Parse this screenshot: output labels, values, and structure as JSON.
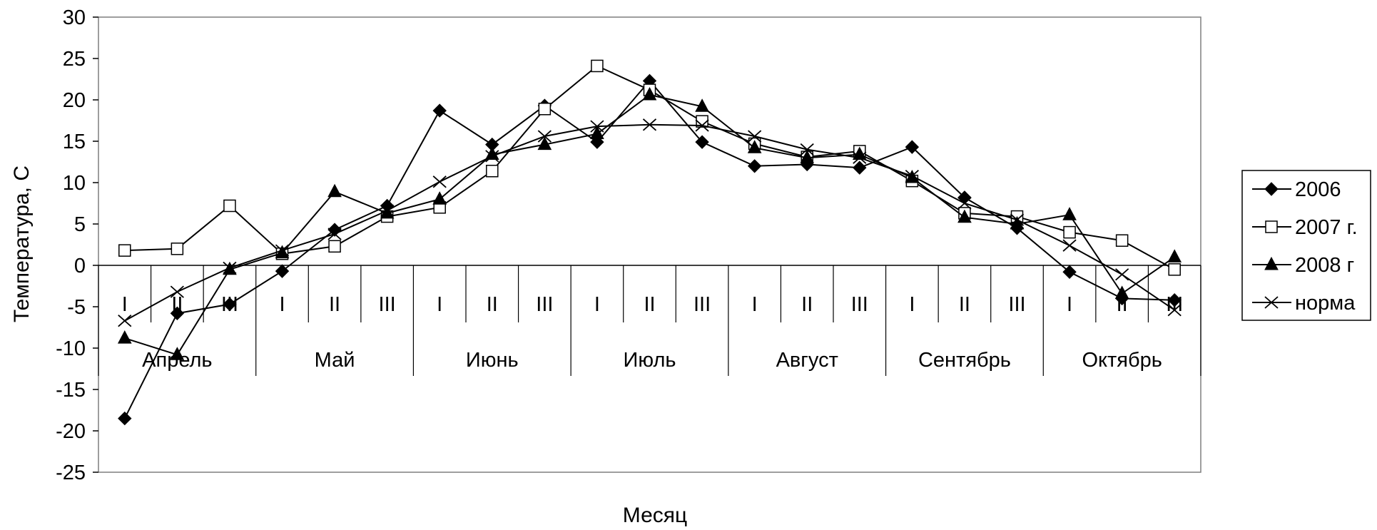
{
  "chart_data": {
    "type": "line",
    "title": "",
    "xlabel": "Месяц",
    "ylabel": "Температура, С",
    "ylim": [
      -25,
      30
    ],
    "yticks": [
      30,
      25,
      20,
      15,
      10,
      5,
      0,
      -5,
      -10,
      -15,
      -20,
      -25
    ],
    "grid": false,
    "legend_position": "right",
    "periods": [
      "I",
      "II",
      "III",
      "I",
      "II",
      "III",
      "I",
      "II",
      "III",
      "I",
      "II",
      "III",
      "I",
      "II",
      "III",
      "I",
      "II",
      "III",
      "I",
      "II",
      "III"
    ],
    "months": [
      "Апрель",
      "Май",
      "Июнь",
      "Июль",
      "Август",
      "Сентябрь",
      "Октябрь"
    ],
    "series": [
      {
        "name": "2006",
        "marker": "diamond-filled",
        "color": "#000000",
        "values": [
          -18.5,
          -5.8,
          -4.7,
          -0.7,
          4.3,
          7.2,
          18.7,
          14.6,
          19.3,
          14.9,
          22.3,
          14.9,
          12.0,
          12.2,
          11.8,
          14.3,
          8.2,
          4.5,
          -0.8,
          -4.0,
          -4.2
        ]
      },
      {
        "name": "2007 г.",
        "marker": "square-open",
        "color": "#000000",
        "values": [
          1.8,
          2.0,
          7.2,
          1.4,
          2.3,
          5.9,
          7.0,
          11.4,
          18.9,
          24.1,
          21.2,
          17.4,
          14.7,
          13.1,
          13.8,
          10.2,
          6.3,
          5.9,
          4.0,
          3.0,
          -0.5
        ]
      },
      {
        "name": "2008 г",
        "marker": "triangle-filled",
        "color": "#000000",
        "values": [
          -8.8,
          -10.8,
          -0.5,
          1.5,
          8.9,
          6.3,
          8.0,
          13.4,
          14.6,
          15.9,
          20.6,
          19.2,
          14.2,
          13.0,
          13.4,
          10.6,
          5.8,
          5.0,
          6.1,
          -3.4,
          1.0
        ]
      },
      {
        "name": "норма",
        "marker": "x",
        "color": "#000000",
        "values": [
          -6.7,
          -3.2,
          -0.3,
          1.8,
          3.8,
          6.6,
          10.1,
          13.2,
          15.6,
          16.8,
          17.0,
          16.9,
          15.6,
          14.0,
          13.0,
          10.8,
          7.5,
          5.5,
          2.4,
          -1.1,
          -5.4
        ]
      }
    ]
  }
}
